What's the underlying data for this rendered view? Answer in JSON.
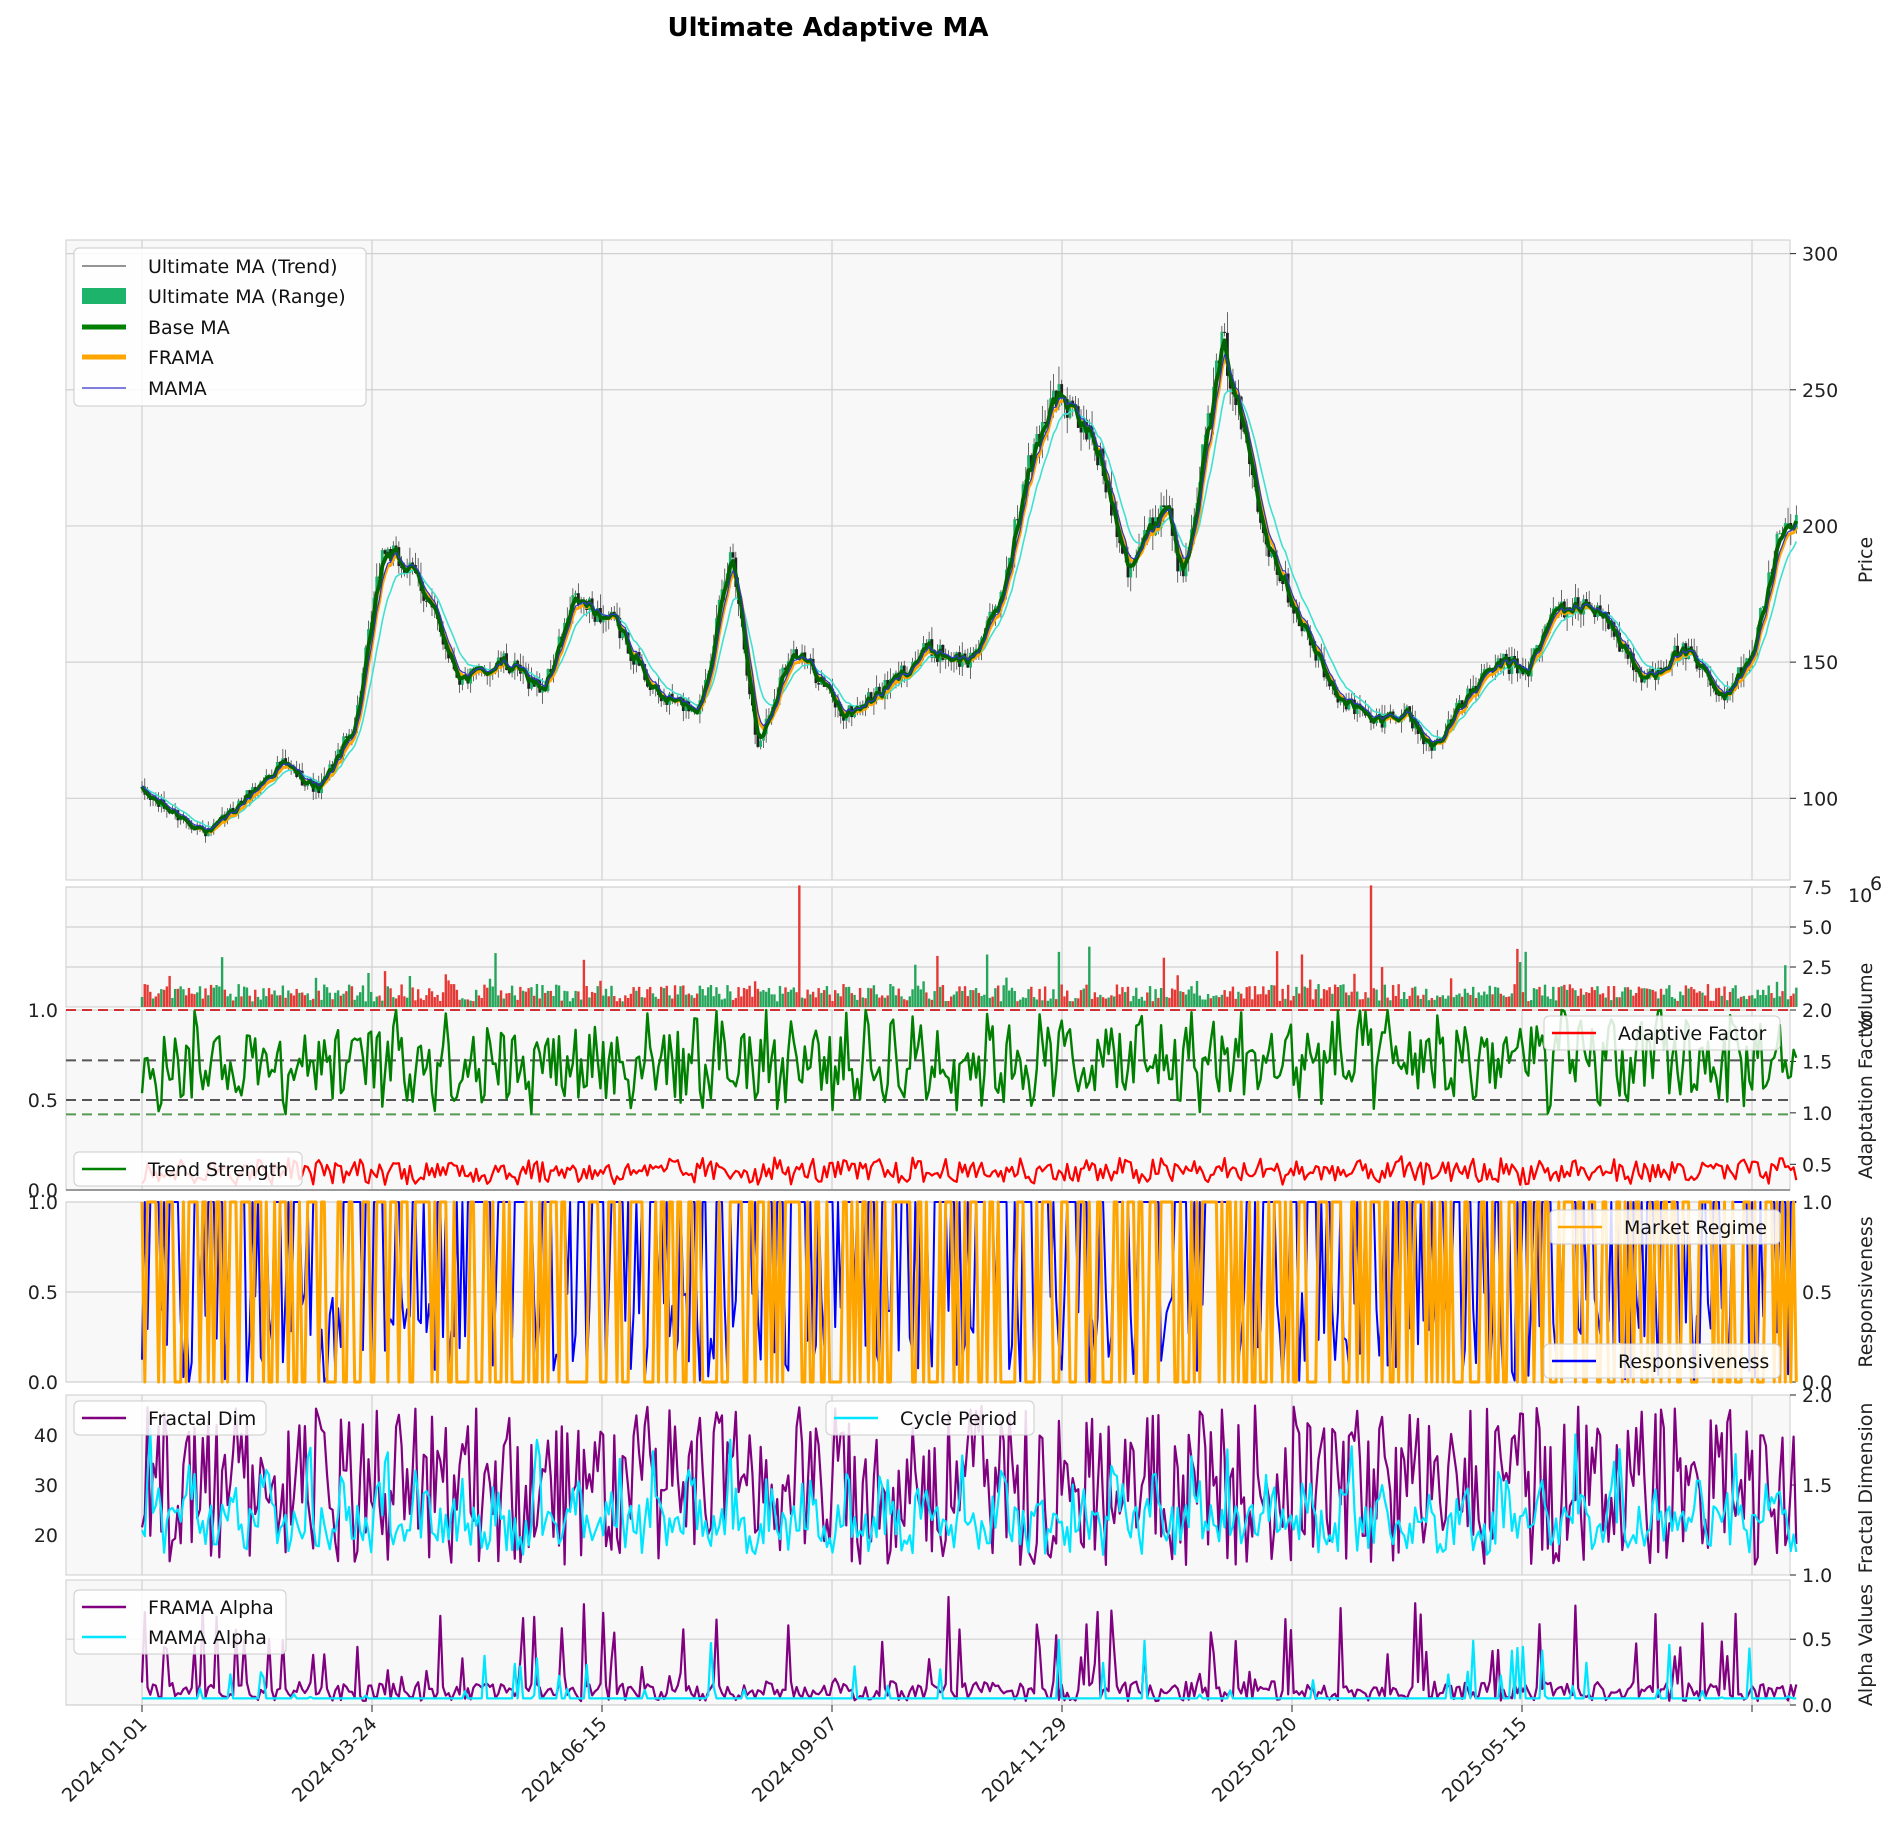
{
  "title": "Ultimate Adaptive MA",
  "x_tick_labels": [
    "2024-01-01",
    "2024-03-24",
    "2024-06-15",
    "2024-09-07",
    "2024-11-29",
    "2025-02-20",
    "2025-05-15"
  ],
  "chart_data": [
    {
      "panel": "price",
      "type": "line",
      "title": "Ultimate Adaptive MA",
      "ylabel": "Price",
      "ylim": [
        70,
        305
      ],
      "yticks": [
        100,
        150,
        200,
        250,
        300
      ],
      "x_range": [
        "2024-01-01",
        "2025-08-20"
      ],
      "grid": true,
      "legend_placement": "upper-left",
      "series": [
        {
          "name": "Ultimate MA (Trend)",
          "color": "#555555"
        },
        {
          "name": "Ultimate MA (Range)",
          "color": "#1db36a"
        },
        {
          "name": "Base MA",
          "color": "#008000"
        },
        {
          "name": "FRAMA",
          "color": "#ffa500"
        },
        {
          "name": "MAMA",
          "color": "#3333cc"
        }
      ],
      "price_path": {
        "dates": [
          "2024-01-01",
          "2024-01-10",
          "2024-01-25",
          "2024-02-05",
          "2024-02-20",
          "2024-03-05",
          "2024-03-18",
          "2024-03-28",
          "2024-04-10",
          "2024-04-25",
          "2024-05-10",
          "2024-05-25",
          "2024-06-05",
          "2024-06-20",
          "2024-07-05",
          "2024-07-20",
          "2024-08-01",
          "2024-08-10",
          "2024-08-22",
          "2024-09-01",
          "2024-09-10",
          "2024-09-25",
          "2024-10-10",
          "2024-10-25",
          "2024-11-05",
          "2024-11-15",
          "2024-11-25",
          "2024-12-10",
          "2024-12-22",
          "2025-01-05",
          "2025-01-10",
          "2025-01-25",
          "2025-02-10",
          "2025-02-20",
          "2025-03-05",
          "2025-03-20",
          "2025-04-01",
          "2025-04-10",
          "2025-04-25",
          "2025-05-05",
          "2025-05-15",
          "2025-05-25",
          "2025-06-10",
          "2025-06-25",
          "2025-07-10",
          "2025-07-25",
          "2025-08-05",
          "2025-08-15"
        ],
        "values": [
          102,
          96,
          87,
          98,
          113,
          103,
          128,
          192,
          180,
          143,
          150,
          140,
          173,
          164,
          137,
          133,
          192,
          118,
          155,
          145,
          130,
          140,
          155,
          150,
          170,
          218,
          250,
          230,
          185,
          210,
          180,
          268,
          195,
          170,
          140,
          128,
          132,
          118,
          140,
          150,
          147,
          170,
          170,
          143,
          155,
          135,
          158,
          201
        ]
      }
    },
    {
      "panel": "volume",
      "type": "bar",
      "ylabel": "Volume",
      "y_scale_label": "10^6",
      "ylim": [
        0,
        7.5
      ],
      "yticks": [
        2.5,
        5.0,
        7.5
      ],
      "series": [
        {
          "name": "Volume (up)",
          "color": "#26a65b"
        },
        {
          "name": "Volume (down)",
          "color": "#e53935"
        }
      ]
    },
    {
      "panel": "adaptation",
      "type": "line",
      "ylabel": "Adaptation Factor",
      "left_ylim": [
        0,
        1
      ],
      "left_yticks": [
        0.0,
        0.5,
        1.0
      ],
      "right_ylim": [
        0.25,
        2.0
      ],
      "right_yticks": [
        0.5,
        1.0,
        1.5,
        2.0
      ],
      "series": [
        {
          "name": "Trend Strength",
          "color": "#008000",
          "axis": "left"
        },
        {
          "name": "Adaptive Factor",
          "color": "#ff0000",
          "axis": "right"
        }
      ],
      "reference_lines": [
        1.0,
        0.72,
        0.5,
        0.42
      ]
    },
    {
      "panel": "responsiveness",
      "type": "line",
      "ylabel": "Responsiveness",
      "ylim": [
        0,
        1
      ],
      "yticks": [
        0.0,
        0.5,
        1.0
      ],
      "series": [
        {
          "name": "Responsiveness",
          "color": "#0000ff"
        },
        {
          "name": "Market Regime",
          "color": "#ffa500"
        }
      ]
    },
    {
      "panel": "fractal-cycle",
      "type": "line",
      "ylabel": "Fractal Dimension",
      "left_ylim": [
        12,
        48
      ],
      "left_yticks": [
        20,
        30,
        40
      ],
      "right_ylim": [
        1.0,
        2.0
      ],
      "right_yticks": [
        1.0,
        1.5,
        2.0
      ],
      "series": [
        {
          "name": "Fractal Dim",
          "color": "#800080",
          "axis": "left"
        },
        {
          "name": "Cycle Period",
          "color": "#00e5ff",
          "axis": "left"
        }
      ]
    },
    {
      "panel": "alpha",
      "type": "line",
      "ylabel": "Alpha Values",
      "ylim": [
        0,
        0.95
      ],
      "yticks": [
        0.0,
        0.5
      ],
      "series": [
        {
          "name": "FRAMA Alpha",
          "color": "#800080"
        },
        {
          "name": "MAMA Alpha",
          "color": "#00e5ff"
        }
      ]
    }
  ],
  "legends": {
    "price": [
      "Ultimate MA (Trend)",
      "Ultimate MA (Range)",
      "Base MA",
      "FRAMA",
      "MAMA"
    ],
    "adaptation_left": "Trend Strength",
    "adaptation_right": "Adaptive Factor",
    "regime": "Market Regime",
    "responsiveness": "Responsiveness",
    "fractal": "Fractal Dim",
    "cycle": "Cycle Period",
    "alpha": [
      "FRAMA Alpha",
      "MAMA Alpha"
    ]
  }
}
